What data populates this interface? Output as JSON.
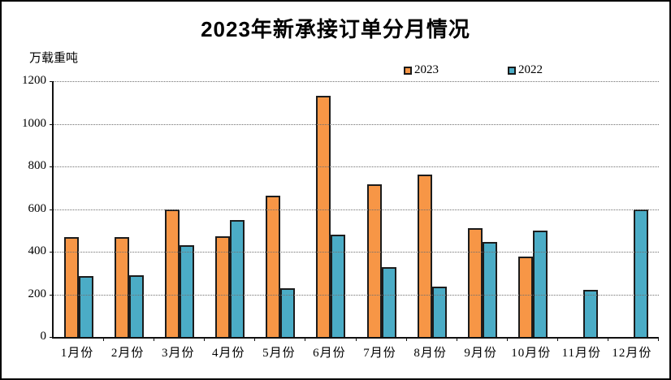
{
  "window": {
    "background": "#ffffff",
    "border_color": "#000000"
  },
  "chart_data": {
    "type": "bar",
    "title": "2023年新承接订单分月情况",
    "ylabel": "万载重吨",
    "xlabel": "",
    "categories": [
      "1月份",
      "2月份",
      "3月份",
      "4月份",
      "5月份",
      "6月份",
      "7月份",
      "8月份",
      "9月份",
      "10月份",
      "11月份",
      "12月份"
    ],
    "series": [
      {
        "name": "2023",
        "color": "#F79646",
        "values": [
          460,
          462,
          592,
          463,
          657,
          1125,
          707,
          754,
          502,
          369,
          null,
          null
        ]
      },
      {
        "name": "2022",
        "color": "#4BACC6",
        "values": [
          277,
          281,
          424,
          541,
          222,
          474,
          321,
          229,
          437,
          493,
          215,
          590
        ]
      }
    ],
    "ylim": [
      0,
      1200
    ],
    "ytick_step": 200,
    "yticks": [
      0,
      200,
      400,
      600,
      800,
      1000,
      1200
    ],
    "grid": "horizontal-dotted",
    "gridline_color": "#707070",
    "bar_border_color": "#1c1c1c",
    "legend_position": "top-center",
    "legend": [
      "2023",
      "2022"
    ]
  }
}
